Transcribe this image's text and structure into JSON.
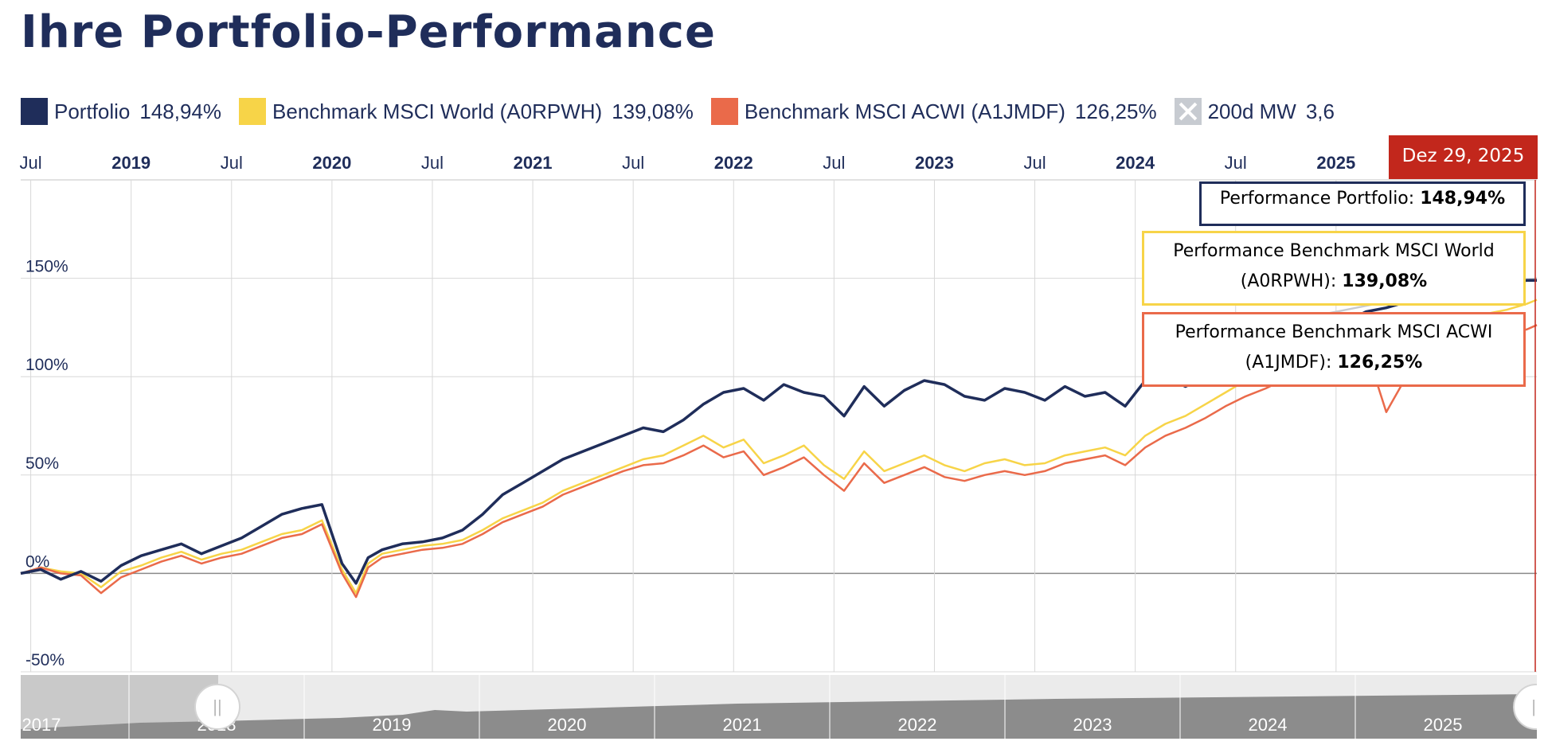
{
  "page_title": "Ihre Portfolio-Performance",
  "legend": [
    {
      "label": "Portfolio",
      "value": "148,94%",
      "color": "#1f2d5a"
    },
    {
      "label": "Benchmark MSCI World (A0RPWH)",
      "value": "139,08%",
      "color": "#f7d448"
    },
    {
      "label": "Benchmark MSCI ACWI (A1JMDF)",
      "value": "126,25%",
      "color": "#ea6a4a"
    },
    {
      "label": "200d MW",
      "value": "3,6",
      "color": "#c7cbd1"
    }
  ],
  "tooltip": {
    "date": "Dez 29, 2025",
    "portfolio_label": "Performance Portfolio:",
    "portfolio_value": "148,94%",
    "world_label_1": "Performance Benchmark MSCI World",
    "world_label_2": "(A0RPWH):",
    "world_value": "139,08%",
    "acwi_label_1": "Performance Benchmark MSCI ACWI",
    "acwi_label_2": "(A1JMDF):",
    "acwi_value": "126,25%"
  },
  "navigator": {
    "labels": [
      "2017",
      "2018",
      "2019",
      "2020",
      "2021",
      "2022",
      "2023",
      "2024",
      "2025"
    ],
    "handle_glyph": "||"
  },
  "chart_data": {
    "type": "line",
    "title": "Ihre Portfolio-Performance",
    "xlabel": "",
    "ylabel": "",
    "x_range": [
      2018.45,
      2026.0
    ],
    "ylim": [
      -50,
      200
    ],
    "y_ticks": [
      -50,
      0,
      50,
      100,
      150
    ],
    "y_tick_labels": [
      "-50%",
      "0%",
      "50%",
      "100%",
      "150%"
    ],
    "x_ticks": [
      {
        "label": "Jul",
        "x": 2018.5,
        "bold": false
      },
      {
        "label": "2019",
        "x": 2019.0,
        "bold": true
      },
      {
        "label": "Jul",
        "x": 2019.5,
        "bold": false
      },
      {
        "label": "2020",
        "x": 2020.0,
        "bold": true
      },
      {
        "label": "Jul",
        "x": 2020.5,
        "bold": false
      },
      {
        "label": "2021",
        "x": 2021.0,
        "bold": true
      },
      {
        "label": "Jul",
        "x": 2021.5,
        "bold": false
      },
      {
        "label": "2022",
        "x": 2022.0,
        "bold": true
      },
      {
        "label": "Jul",
        "x": 2022.5,
        "bold": false
      },
      {
        "label": "2023",
        "x": 2023.0,
        "bold": true
      },
      {
        "label": "Jul",
        "x": 2023.5,
        "bold": false
      },
      {
        "label": "2024",
        "x": 2024.0,
        "bold": true
      },
      {
        "label": "Jul",
        "x": 2024.5,
        "bold": false
      },
      {
        "label": "2025",
        "x": 2025.0,
        "bold": true
      }
    ],
    "x": [
      2018.45,
      2018.55,
      2018.65,
      2018.75,
      2018.85,
      2018.95,
      2019.05,
      2019.15,
      2019.25,
      2019.35,
      2019.45,
      2019.55,
      2019.65,
      2019.75,
      2019.85,
      2019.95,
      2020.05,
      2020.12,
      2020.18,
      2020.25,
      2020.35,
      2020.45,
      2020.55,
      2020.65,
      2020.75,
      2020.85,
      2020.95,
      2021.05,
      2021.15,
      2021.25,
      2021.35,
      2021.45,
      2021.55,
      2021.65,
      2021.75,
      2021.85,
      2021.95,
      2022.05,
      2022.15,
      2022.25,
      2022.35,
      2022.45,
      2022.55,
      2022.65,
      2022.75,
      2022.85,
      2022.95,
      2023.05,
      2023.15,
      2023.25,
      2023.35,
      2023.45,
      2023.55,
      2023.65,
      2023.75,
      2023.85,
      2023.95,
      2024.05,
      2024.15,
      2024.25,
      2024.35,
      2024.45,
      2024.55,
      2024.65,
      2024.75,
      2024.85,
      2024.95,
      2025.05,
      2025.15,
      2025.25,
      2025.35,
      2025.45,
      2025.55,
      2025.65,
      2025.75,
      2025.85,
      2025.95,
      2026.0
    ],
    "series": [
      {
        "name": "Portfolio",
        "color": "#1f2d5a",
        "width": 3.5,
        "values": [
          0,
          2,
          -3,
          1,
          -4,
          4,
          9,
          12,
          15,
          10,
          14,
          18,
          24,
          30,
          33,
          35,
          5,
          -5,
          8,
          12,
          15,
          16,
          18,
          22,
          30,
          40,
          46,
          52,
          58,
          62,
          66,
          70,
          74,
          72,
          78,
          86,
          92,
          94,
          88,
          96,
          92,
          90,
          80,
          95,
          85,
          93,
          98,
          96,
          90,
          88,
          94,
          92,
          88,
          95,
          90,
          92,
          85,
          98,
          100,
          95,
          100,
          105,
          110,
          108,
          118,
          125,
          130,
          128,
          133,
          135,
          138,
          140,
          142,
          145,
          147,
          146,
          149,
          148.94
        ]
      },
      {
        "name": "Benchmark MSCI World (A0RPWH)",
        "color": "#f7d448",
        "width": 2.5,
        "values": [
          0,
          3,
          1,
          0,
          -7,
          1,
          4,
          8,
          11,
          7,
          10,
          12,
          16,
          20,
          22,
          27,
          2,
          -10,
          5,
          10,
          12,
          14,
          15,
          17,
          22,
          28,
          32,
          36,
          42,
          46,
          50,
          54,
          58,
          60,
          65,
          70,
          64,
          68,
          56,
          60,
          65,
          55,
          48,
          62,
          52,
          56,
          60,
          55,
          52,
          56,
          58,
          55,
          56,
          60,
          62,
          64,
          60,
          70,
          76,
          80,
          86,
          92,
          98,
          102,
          108,
          114,
          118,
          122,
          125,
          100,
          112,
          120,
          126,
          130,
          132,
          134,
          137,
          139.08
        ]
      },
      {
        "name": "Benchmark MSCI ACWI (A1JMDF)",
        "color": "#ea6a4a",
        "width": 2.5,
        "values": [
          0,
          3,
          0,
          -1,
          -10,
          -2,
          2,
          6,
          9,
          5,
          8,
          10,
          14,
          18,
          20,
          25,
          0,
          -12,
          3,
          8,
          10,
          12,
          13,
          15,
          20,
          26,
          30,
          34,
          40,
          44,
          48,
          52,
          55,
          56,
          60,
          65,
          59,
          62,
          50,
          54,
          59,
          50,
          42,
          56,
          46,
          50,
          54,
          49,
          47,
          50,
          52,
          50,
          52,
          56,
          58,
          60,
          55,
          64,
          70,
          74,
          79,
          85,
          90,
          94,
          99,
          104,
          108,
          112,
          114,
          82,
          100,
          108,
          114,
          118,
          120,
          122,
          124,
          126.25
        ]
      },
      {
        "name": "200d MW",
        "color": "#c7cbd1",
        "width": 2.5,
        "values": [
          null,
          null,
          null,
          null,
          null,
          null,
          null,
          null,
          null,
          null,
          null,
          null,
          null,
          null,
          null,
          null,
          null,
          null,
          null,
          null,
          null,
          null,
          null,
          null,
          null,
          null,
          null,
          null,
          null,
          null,
          null,
          null,
          null,
          null,
          null,
          null,
          null,
          null,
          null,
          null,
          null,
          null,
          null,
          null,
          null,
          null,
          null,
          null,
          null,
          null,
          null,
          null,
          null,
          null,
          null,
          null,
          null,
          null,
          100,
          104,
          108,
          112,
          116,
          120,
          124,
          128,
          132,
          134,
          136,
          138,
          140,
          142,
          144,
          146,
          147,
          148,
          149,
          150
        ]
      }
    ]
  }
}
